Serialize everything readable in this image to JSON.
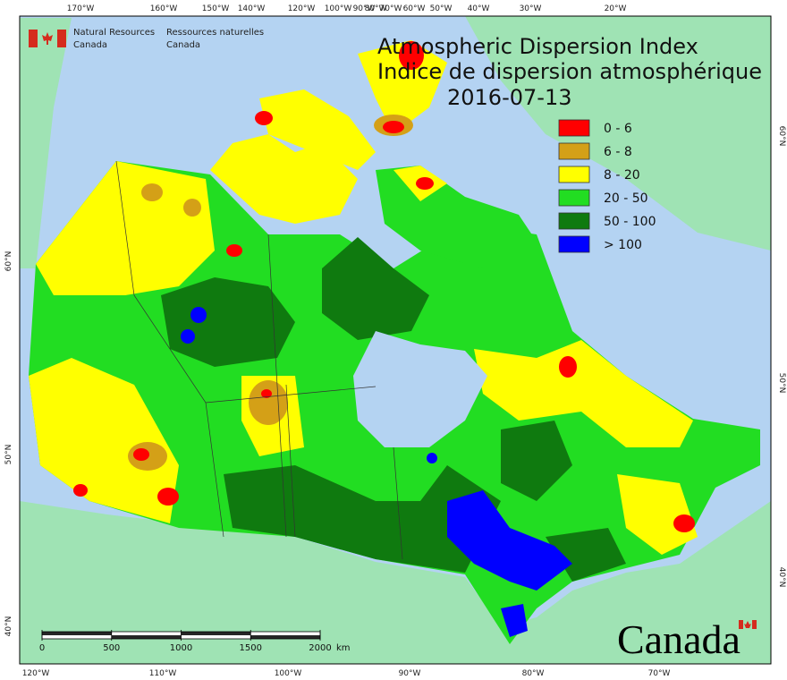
{
  "header": {
    "title_en": "Atmospheric Dispersion Index",
    "title_fr": "Indice de dispersion atmosphérique",
    "date": "2016-07-13"
  },
  "agency": {
    "en": [
      "Natural Resources",
      "Canada"
    ],
    "fr": [
      "Ressources naturelles",
      "Canada"
    ]
  },
  "legend": [
    {
      "label": "0 - 6",
      "color": "#ff0000"
    },
    {
      "label": "6 - 8",
      "color": "#d4a017"
    },
    {
      "label": "8 - 20",
      "color": "#ffff00"
    },
    {
      "label": "20 - 50",
      "color": "#22dd22"
    },
    {
      "label": "50 - 100",
      "color": "#0f7a0f"
    },
    {
      "label": "> 100",
      "color": "#0000ff"
    }
  ],
  "top_longitudes": [
    "170°W",
    "160°W",
    "150°W",
    "140°W",
    "120°W",
    "100°W",
    "90°W",
    "80°W",
    "70°W",
    "60°W",
    "50°W",
    "40°W",
    "30°W",
    "20°W"
  ],
  "bottom_longitudes": [
    "120°W",
    "110°W",
    "100°W",
    "90°W",
    "80°W",
    "70°W"
  ],
  "left_latitudes": [
    "60°N",
    "50°N",
    "40°N"
  ],
  "right_latitudes": [
    "60°N",
    "50°N",
    "40°N"
  ],
  "scale": {
    "ticks": [
      0,
      500,
      1000,
      1500,
      2000
    ],
    "unit": "km"
  },
  "wordmark": "Canada"
}
